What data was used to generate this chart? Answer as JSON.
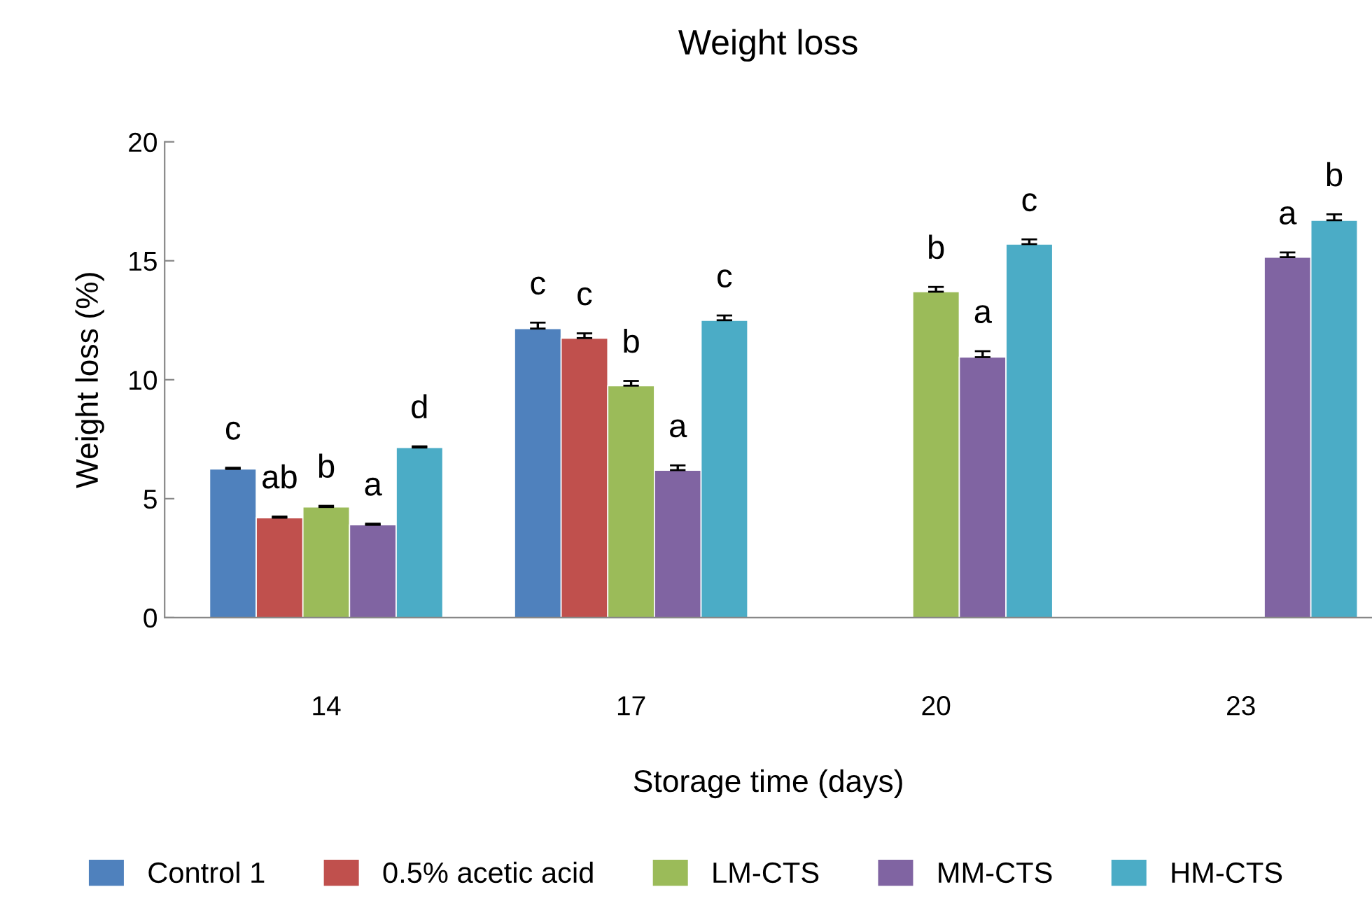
{
  "chart_data": {
    "type": "bar",
    "title": "Weight loss",
    "xlabel": "Storage time (days)",
    "ylabel": "Weight loss (%)",
    "categories": [
      "14",
      "17",
      "20",
      "23"
    ],
    "series": [
      {
        "name": "Control 1",
        "color": "#4f81bd",
        "values": [
          6.25,
          12.15,
          null,
          null
        ],
        "errors": [
          0.05,
          0.25,
          null,
          null
        ],
        "value_labels": [
          "c",
          "c",
          null,
          null
        ]
      },
      {
        "name": "0.5% acetic acid",
        "color": "#c0504d",
        "values": [
          4.2,
          11.75,
          null,
          null
        ],
        "errors": [
          0.05,
          0.2,
          null,
          null
        ],
        "value_labels": [
          "ab",
          "c",
          null,
          null
        ]
      },
      {
        "name": "LM-CTS",
        "color": "#9bbb59",
        "values": [
          4.65,
          9.75,
          13.7,
          null
        ],
        "errors": [
          0.05,
          0.2,
          0.2,
          null
        ],
        "value_labels": [
          "b",
          "b",
          "b",
          null
        ]
      },
      {
        "name": "MM-CTS",
        "color": "#8064a2",
        "values": [
          3.9,
          6.2,
          10.95,
          15.15
        ],
        "errors": [
          0.05,
          0.2,
          0.25,
          0.2
        ],
        "value_labels": [
          "a",
          "a",
          "a",
          "a"
        ]
      },
      {
        "name": "HM-CTS",
        "color": "#4bacc6",
        "values": [
          7.15,
          12.5,
          15.7,
          16.7
        ],
        "errors": [
          0.05,
          0.2,
          0.2,
          0.25
        ],
        "value_labels": [
          "d",
          "c",
          "c",
          "b"
        ]
      }
    ],
    "ylim": [
      0,
      20
    ],
    "yticks": [
      0,
      5,
      10,
      15,
      20
    ],
    "grid": false,
    "legend": "bottom"
  }
}
